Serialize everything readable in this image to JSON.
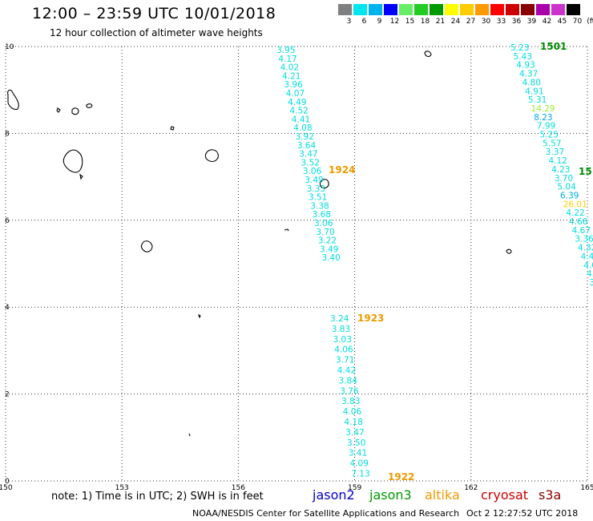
{
  "header": {
    "title": "12:00 – 23:59 UTC 10/01/2018",
    "subtitle": "12 hour collection of altimeter wave heights"
  },
  "legend": {
    "unit": "(ft)",
    "steps": [
      {
        "label": "3",
        "color": "#7f7f7f"
      },
      {
        "label": "6",
        "color": "#00e5ee"
      },
      {
        "label": "9",
        "color": "#00b2ee"
      },
      {
        "label": "12",
        "color": "#0000ff"
      },
      {
        "label": "15",
        "color": "#66ee66"
      },
      {
        "label": "18",
        "color": "#22cc22"
      },
      {
        "label": "21",
        "color": "#009900"
      },
      {
        "label": "24",
        "color": "#ffff00"
      },
      {
        "label": "27",
        "color": "#ffcc00"
      },
      {
        "label": "30",
        "color": "#ff9900"
      },
      {
        "label": "33",
        "color": "#ff0000"
      },
      {
        "label": "36",
        "color": "#cc0000"
      },
      {
        "label": "39",
        "color": "#880000"
      },
      {
        "label": "42",
        "color": "#aa00aa"
      },
      {
        "label": "45",
        "color": "#cc33cc"
      },
      {
        "label": "70",
        "color": "#000000"
      }
    ]
  },
  "axes": {
    "x_ticks": [
      "150",
      "153",
      "156",
      "159",
      "162",
      "165"
    ],
    "y_ticks": [
      "0",
      "2",
      "4",
      "6",
      "8",
      "10"
    ],
    "lon_range": [
      150,
      165
    ],
    "lat_range": [
      0,
      10
    ]
  },
  "tracks": [
    {
      "time_label": "1924",
      "time_label_color": "#ee9900",
      "points": [
        {
          "v": "3.95",
          "c": "#00dddd"
        },
        {
          "v": "4.17",
          "c": "#00dddd"
        },
        {
          "v": "4.02",
          "c": "#00dddd"
        },
        {
          "v": "4.21",
          "c": "#00dddd"
        },
        {
          "v": "3.96",
          "c": "#00dddd"
        },
        {
          "v": "4.07",
          "c": "#00dddd"
        },
        {
          "v": "4.49",
          "c": "#00dddd"
        },
        {
          "v": "4.52",
          "c": "#00dddd"
        },
        {
          "v": "4.41",
          "c": "#00dddd"
        },
        {
          "v": "4.08",
          "c": "#00dddd"
        },
        {
          "v": "3.92",
          "c": "#00dddd"
        },
        {
          "v": "3.64",
          "c": "#00dddd"
        },
        {
          "v": "3.47",
          "c": "#00dddd"
        },
        {
          "v": "3.52",
          "c": "#00dddd"
        },
        {
          "v": "3.06",
          "c": "#00dddd"
        },
        {
          "v": "3.49",
          "c": "#00dddd"
        },
        {
          "v": "3.33",
          "c": "#00dddd"
        },
        {
          "v": "3.51",
          "c": "#00dddd"
        },
        {
          "v": "3.38",
          "c": "#00dddd"
        },
        {
          "v": "3.68",
          "c": "#00dddd"
        },
        {
          "v": "3.06",
          "c": "#00dddd"
        },
        {
          "v": "3.70",
          "c": "#00dddd"
        },
        {
          "v": "3.22",
          "c": "#00dddd"
        },
        {
          "v": "3.49",
          "c": "#00dddd"
        },
        {
          "v": "3.40",
          "c": "#00dddd"
        }
      ]
    },
    {
      "time_label": "1923",
      "time_label_color": "#ee9900",
      "points": [
        {
          "v": "3.24",
          "c": "#00dddd"
        },
        {
          "v": "3.83",
          "c": "#00dddd"
        },
        {
          "v": "3.03",
          "c": "#00dddd"
        },
        {
          "v": "4.06",
          "c": "#00dddd"
        },
        {
          "v": "3.71",
          "c": "#00dddd"
        },
        {
          "v": "4.42",
          "c": "#00dddd"
        },
        {
          "v": "3.84",
          "c": "#00dddd"
        },
        {
          "v": "3.76",
          "c": "#00dddd"
        },
        {
          "v": "3.83",
          "c": "#00dddd"
        },
        {
          "v": "4.06",
          "c": "#00dddd"
        },
        {
          "v": "4.18",
          "c": "#00dddd"
        },
        {
          "v": "3.47",
          "c": "#00dddd"
        },
        {
          "v": "3.50",
          "c": "#00dddd"
        },
        {
          "v": "3.41",
          "c": "#00dddd"
        },
        {
          "v": "4.09",
          "c": "#00dddd"
        },
        {
          "v": "7.13",
          "c": "#00dddd"
        }
      ]
    },
    {
      "time_label": "1922",
      "time_label_color": "#ee9900",
      "points": []
    },
    {
      "time_label": "1501",
      "time_label_color": "#008800",
      "points": [
        {
          "v": "5.23",
          "c": "#00dddd"
        },
        {
          "v": "5.43",
          "c": "#00dddd"
        },
        {
          "v": "4.93",
          "c": "#00dddd"
        },
        {
          "v": "4.37",
          "c": "#00dddd"
        },
        {
          "v": "4.80",
          "c": "#00dddd"
        },
        {
          "v": "4.91",
          "c": "#00dddd"
        },
        {
          "v": "5.31",
          "c": "#00dddd"
        },
        {
          "v": "14.29",
          "c": "#99ee33"
        },
        {
          "v": "8.23",
          "c": "#00aadd"
        },
        {
          "v": "7.99",
          "c": "#00dddd"
        },
        {
          "v": "5.25",
          "c": "#00dddd"
        },
        {
          "v": "5.57",
          "c": "#00dddd"
        },
        {
          "v": "3.37",
          "c": "#00dddd"
        },
        {
          "v": "4.12",
          "c": "#00dddd"
        },
        {
          "v": "4.23",
          "c": "#00dddd"
        },
        {
          "v": "3.70",
          "c": "#00dddd"
        },
        {
          "v": "5.04",
          "c": "#00dddd"
        },
        {
          "v": "6.39",
          "c": "#00aadd"
        },
        {
          "v": "26.01",
          "c": "#ffcc00"
        },
        {
          "v": "4.22",
          "c": "#00dddd"
        },
        {
          "v": "4.66",
          "c": "#00dddd"
        },
        {
          "v": "4.67",
          "c": "#00dddd"
        },
        {
          "v": "3.36",
          "c": "#00dddd"
        },
        {
          "v": "4.32",
          "c": "#00dddd"
        },
        {
          "v": "4.47",
          "c": "#00dddd"
        },
        {
          "v": "4.0",
          "c": "#00dddd"
        },
        {
          "v": "4.",
          "c": "#00dddd"
        },
        {
          "v": "3",
          "c": "#00dddd"
        }
      ]
    },
    {
      "time_label": "15",
      "time_label_color": "#008800",
      "points": []
    }
  ],
  "footer": {
    "note": "note:  1) Time is in UTC;  2) SWH is in feet",
    "satellites": [
      {
        "name": "jason2",
        "color": "#0000cc"
      },
      {
        "name": "jason3",
        "color": "#009900"
      },
      {
        "name": "altika",
        "color": "#ee9900"
      },
      {
        "name": "cryosat",
        "color": "#cc0000"
      },
      {
        "name": "s3a",
        "color": "#880000"
      }
    ],
    "credit": "NOAA/NESDIS Center for Satellite Applications and Research",
    "timestamp": "Oct  2 12:27:52 UTC 2018"
  }
}
